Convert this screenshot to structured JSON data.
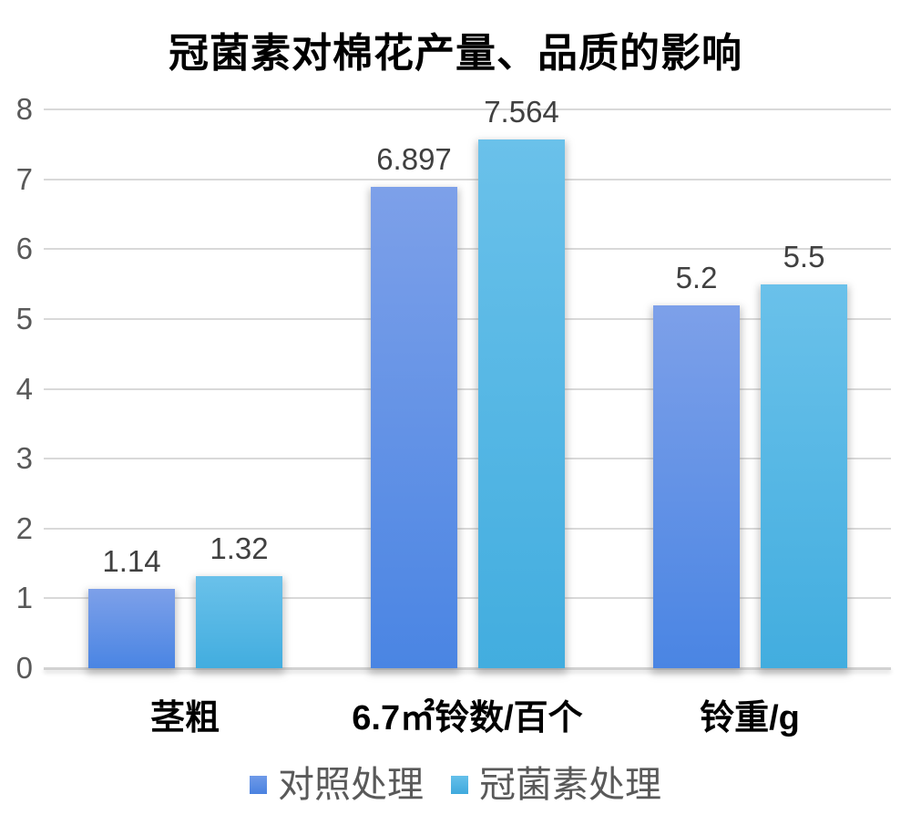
{
  "chart_data": {
    "type": "bar",
    "title": "冠菌素对棉花产量、品质的影响",
    "categories": [
      "茎粗",
      "6.7㎡铃数/百个",
      "铃重/g"
    ],
    "series": [
      {
        "name": "对照处理",
        "values": [
          1.14,
          6.897,
          5.2
        ],
        "labels": [
          "1.14",
          "6.897",
          "5.2"
        ]
      },
      {
        "name": "冠菌素处理",
        "values": [
          1.32,
          7.564,
          5.5
        ],
        "labels": [
          "1.32",
          "7.564",
          "5.5"
        ]
      }
    ],
    "xlabel": "",
    "ylabel": "",
    "ylim": [
      0,
      8
    ],
    "yticks": [
      0,
      1,
      2,
      3,
      4,
      5,
      6,
      7,
      8
    ],
    "grid": true,
    "legend_position": "bottom",
    "colors": {
      "series1_top": "#7da0e9",
      "series1_bottom": "#4a85e3",
      "series2_top": "#6ac1ea",
      "series2_bottom": "#42addf",
      "gridline": "#d9d9d9",
      "axis_text": "#595959",
      "data_label_text": "#404040",
      "category_text": "#000000",
      "legend_text": "#595959",
      "title_text": "#000000",
      "background": "#ffffff"
    }
  }
}
